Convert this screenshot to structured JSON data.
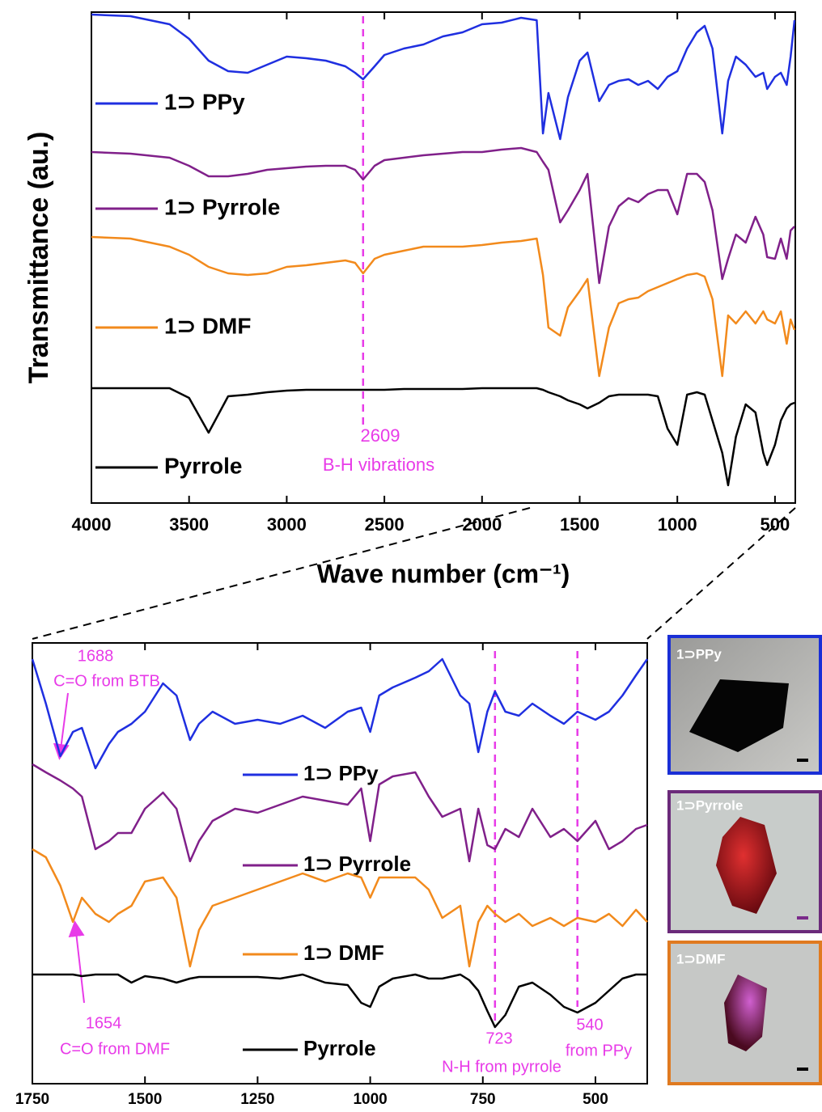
{
  "chart_data": [
    {
      "type": "line",
      "xlabel": "Wave number (cm⁻¹)",
      "ylabel": "Transmittance (au.)",
      "xlim": [
        4000,
        396
      ],
      "ylim": [
        0,
        607
      ],
      "xticks": [
        4000,
        3500,
        3000,
        2500,
        2000,
        1500,
        1000,
        500
      ],
      "x": [
        4000,
        3800,
        3600,
        3500,
        3400,
        3300,
        3200,
        3100,
        3000,
        2900,
        2800,
        2700,
        2650,
        2609,
        2550,
        2500,
        2400,
        2300,
        2200,
        2100,
        2000,
        1900,
        1800,
        1720,
        1688,
        1660,
        1600,
        1560,
        1500,
        1460,
        1400,
        1350,
        1300,
        1250,
        1200,
        1150,
        1100,
        1050,
        1000,
        950,
        900,
        860,
        820,
        770,
        740,
        700,
        650,
        600,
        560,
        540,
        500,
        470,
        440,
        420,
        400
      ],
      "series": [
        {
          "name": "1⊃ PPy",
          "color": "#1f2fe0",
          "values": [
            604,
            602,
            592,
            574,
            547,
            534,
            532,
            542,
            552,
            550,
            547,
            540,
            532,
            524,
            540,
            554,
            562,
            567,
            577,
            582,
            592,
            594,
            600,
            597,
            457,
            507,
            450,
            502,
            547,
            557,
            497,
            517,
            522,
            524,
            517,
            522,
            512,
            527,
            534,
            562,
            582,
            590,
            562,
            457,
            522,
            552,
            542,
            527,
            532,
            512,
            527,
            532,
            517,
            552,
            597
          ]
        },
        {
          "name": "1⊃ Pyrrole",
          "color": "#80208a",
          "values": [
            434,
            432,
            427,
            417,
            404,
            404,
            407,
            412,
            414,
            416,
            417,
            417,
            412,
            400,
            417,
            424,
            427,
            430,
            432,
            434,
            434,
            437,
            439,
            434,
            422,
            412,
            347,
            362,
            387,
            407,
            272,
            342,
            367,
            377,
            372,
            382,
            387,
            387,
            357,
            407,
            407,
            397,
            362,
            277,
            302,
            332,
            322,
            354,
            332,
            304,
            302,
            327,
            302,
            337,
            342
          ]
        },
        {
          "name": "1⊃ DMF",
          "color": "#f28a1c",
          "values": [
            329,
            327,
            317,
            307,
            292,
            284,
            282,
            284,
            292,
            294,
            297,
            300,
            297,
            284,
            302,
            307,
            312,
            317,
            317,
            317,
            319,
            322,
            324,
            327,
            282,
            217,
            207,
            242,
            262,
            277,
            157,
            217,
            247,
            252,
            254,
            262,
            267,
            272,
            277,
            282,
            284,
            280,
            252,
            157,
            232,
            222,
            237,
            222,
            237,
            227,
            222,
            237,
            197,
            227,
            214
          ]
        },
        {
          "name": "Pyrrole",
          "color": "#000000",
          "values": [
            142,
            142,
            142,
            130,
            87,
            132,
            134,
            137,
            139,
            140,
            140,
            140,
            140,
            140,
            140,
            140,
            141,
            141,
            141,
            141,
            142,
            142,
            142,
            142,
            140,
            137,
            132,
            127,
            122,
            117,
            124,
            132,
            134,
            134,
            134,
            134,
            132,
            92,
            72,
            134,
            137,
            134,
            102,
            62,
            22,
            82,
            122,
            112,
            62,
            47,
            72,
            102,
            117,
            122,
            124
          ]
        }
      ],
      "annotations": [
        {
          "x": 2609,
          "style": "dashed-line",
          "labels": [
            "2609",
            "B-H vibrations"
          ]
        }
      ]
    },
    {
      "type": "line",
      "xlim": [
        1750,
        385
      ],
      "ylim": [
        0,
        545
      ],
      "xticks": [
        1750,
        1500,
        1250,
        1000,
        750,
        500
      ],
      "x": [
        1750,
        1720,
        1688,
        1660,
        1640,
        1610,
        1580,
        1560,
        1530,
        1500,
        1460,
        1430,
        1400,
        1380,
        1350,
        1300,
        1250,
        1200,
        1150,
        1100,
        1050,
        1020,
        1000,
        980,
        950,
        900,
        870,
        840,
        800,
        780,
        760,
        740,
        723,
        700,
        670,
        640,
        600,
        570,
        540,
        500,
        470,
        440,
        410,
        385
      ],
      "series": [
        {
          "name": "1⊃ PPy",
          "color": "#1f2fe0",
          "values": [
            525,
            470,
            405,
            435,
            440,
            390,
            420,
            435,
            445,
            460,
            495,
            480,
            425,
            445,
            460,
            445,
            450,
            445,
            455,
            440,
            460,
            465,
            435,
            480,
            490,
            502,
            510,
            525,
            480,
            470,
            410,
            460,
            485,
            460,
            455,
            470,
            455,
            445,
            460,
            450,
            460,
            480,
            505,
            525
          ]
        },
        {
          "name": "1⊃ Pyrrole",
          "color": "#80208a",
          "values": [
            395,
            385,
            375,
            365,
            355,
            290,
            300,
            310,
            310,
            340,
            360,
            340,
            275,
            300,
            325,
            340,
            335,
            345,
            355,
            350,
            345,
            365,
            300,
            370,
            380,
            385,
            355,
            330,
            340,
            275,
            340,
            295,
            290,
            315,
            305,
            340,
            305,
            315,
            300,
            325,
            290,
            300,
            315,
            320
          ]
        },
        {
          "name": "1⊃ DMF",
          "color": "#f28a1c",
          "values": [
            290,
            280,
            245,
            200,
            230,
            210,
            200,
            210,
            220,
            250,
            255,
            230,
            145,
            190,
            220,
            230,
            240,
            250,
            260,
            250,
            260,
            255,
            230,
            255,
            255,
            255,
            240,
            205,
            220,
            145,
            200,
            220,
            210,
            200,
            210,
            195,
            205,
            195,
            205,
            200,
            210,
            195,
            215,
            200
          ]
        },
        {
          "name": "Pyrrole",
          "color": "#000000",
          "values": [
            135,
            135,
            135,
            135,
            133,
            135,
            135,
            135,
            125,
            133,
            130,
            125,
            130,
            132,
            132,
            132,
            132,
            130,
            135,
            125,
            122,
            100,
            95,
            120,
            130,
            135,
            130,
            130,
            135,
            128,
            115,
            90,
            70,
            85,
            120,
            125,
            110,
            95,
            88,
            100,
            115,
            130,
            135,
            135
          ]
        }
      ],
      "annotations": [
        {
          "x": 1688,
          "style": "arrow",
          "labels": [
            "1688",
            "C=O from BTB"
          ]
        },
        {
          "x": 1654,
          "style": "arrow",
          "labels": [
            "1654",
            "C=O from DMF"
          ]
        },
        {
          "x": 723,
          "style": "dashed-line",
          "labels": [
            "723",
            "N-H from pyrrole"
          ]
        },
        {
          "x": 540,
          "style": "dashed-line",
          "labels": [
            "540",
            "from PPy"
          ]
        }
      ]
    }
  ],
  "panels": [
    {
      "label": "1⊃PPy"
    },
    {
      "label": "1⊃Pyrrole"
    },
    {
      "label": "1⊃DMF"
    }
  ]
}
